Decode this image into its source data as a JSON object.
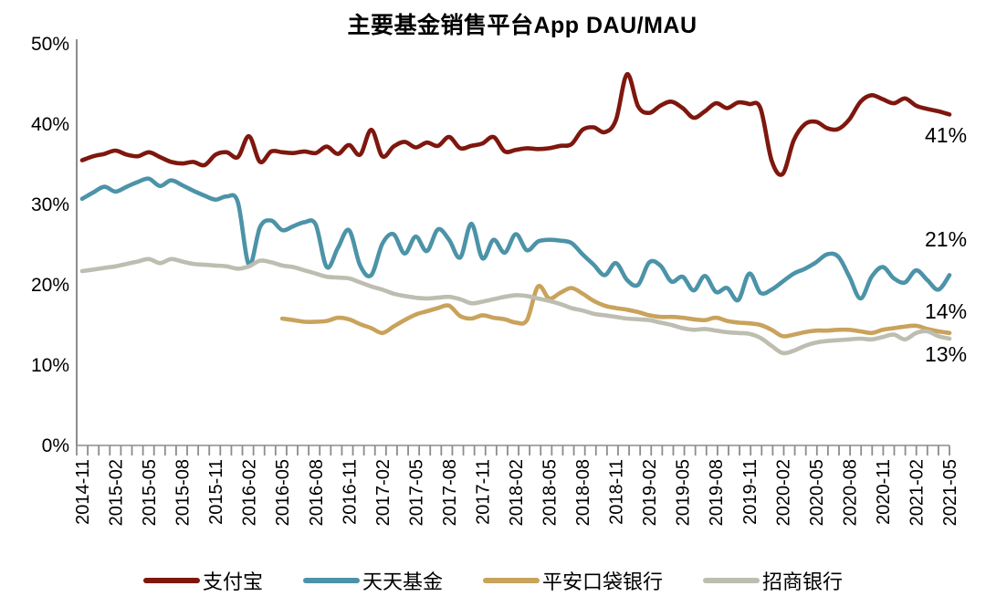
{
  "title": "主要基金销售平台App DAU/MAU",
  "colors": {
    "alipay": "#7E170E",
    "tiantian_fund": "#4C93A8",
    "pingan_pocket_bank": "#C9A25C",
    "cmb": "#BDBDB1",
    "axis": "#8C8C8C",
    "text": "#000000",
    "background": "#FFFFFF"
  },
  "chart_data": {
    "type": "line",
    "title": "主要基金销售平台App DAU/MAU",
    "grid": "off",
    "line_smoothing": true,
    "legend_position": "bottom",
    "ylim": [
      0,
      50
    ],
    "y_tick_labels": [
      "0%",
      "10%",
      "20%",
      "30%",
      "40%",
      "50%"
    ],
    "x_tick_labels": [
      "2014-11",
      "2015-02",
      "2015-05",
      "2015-08",
      "2015-11",
      "2016-02",
      "2016-05",
      "2016-08",
      "2016-11",
      "2017-02",
      "2017-05",
      "2017-08",
      "2017-11",
      "2018-02",
      "2018-05",
      "2018-08",
      "2018-11",
      "2019-02",
      "2019-05",
      "2019-08",
      "2019-11",
      "2020-02",
      "2020-05",
      "2020-08",
      "2020-11",
      "2021-02",
      "2021-05"
    ],
    "x_tick_every_n_months": 3,
    "categories": [
      "2014-11",
      "2014-12",
      "2015-01",
      "2015-02",
      "2015-03",
      "2015-04",
      "2015-05",
      "2015-06",
      "2015-07",
      "2015-08",
      "2015-09",
      "2015-10",
      "2015-11",
      "2015-12",
      "2016-01",
      "2016-02",
      "2016-03",
      "2016-04",
      "2016-05",
      "2016-06",
      "2016-07",
      "2016-08",
      "2016-09",
      "2016-10",
      "2016-11",
      "2016-12",
      "2017-01",
      "2017-02",
      "2017-03",
      "2017-04",
      "2017-05",
      "2017-06",
      "2017-07",
      "2017-08",
      "2017-09",
      "2017-10",
      "2017-11",
      "2017-12",
      "2018-01",
      "2018-02",
      "2018-03",
      "2018-04",
      "2018-05",
      "2018-06",
      "2018-07",
      "2018-08",
      "2018-09",
      "2018-10",
      "2018-11",
      "2018-12",
      "2019-01",
      "2019-02",
      "2019-03",
      "2019-04",
      "2019-05",
      "2019-06",
      "2019-07",
      "2019-08",
      "2019-09",
      "2019-10",
      "2019-11",
      "2019-12",
      "2020-01",
      "2020-02",
      "2020-03",
      "2020-04",
      "2020-05",
      "2020-06",
      "2020-07",
      "2020-08",
      "2020-09",
      "2020-10",
      "2020-11",
      "2020-12",
      "2021-01",
      "2021-02",
      "2021-03",
      "2021-04",
      "2021-05"
    ],
    "series": [
      {
        "key": "alipay",
        "name": "支付宝",
        "color": "#7E170E",
        "end_label": "41%",
        "values": [
          35.5,
          36.0,
          36.3,
          36.7,
          36.2,
          36.0,
          36.5,
          35.9,
          35.3,
          35.1,
          35.3,
          34.9,
          36.2,
          36.5,
          35.9,
          38.5,
          35.3,
          36.6,
          36.5,
          36.4,
          36.6,
          36.4,
          37.2,
          36.3,
          37.4,
          36.2,
          39.3,
          36.0,
          37.2,
          37.8,
          37.1,
          37.7,
          37.3,
          38.4,
          37.0,
          37.3,
          37.6,
          38.4,
          36.6,
          36.8,
          37.0,
          36.9,
          37.0,
          37.3,
          37.5,
          39.3,
          39.6,
          39.0,
          40.5,
          46.2,
          42.2,
          41.4,
          42.3,
          42.8,
          42.0,
          40.8,
          41.6,
          42.6,
          42.0,
          42.7,
          42.5,
          42.0,
          35.5,
          33.8,
          38.0,
          40.0,
          40.3,
          39.5,
          39.4,
          40.6,
          42.8,
          43.6,
          43.1,
          42.6,
          43.2,
          42.3,
          41.9,
          41.6,
          41.2
        ]
      },
      {
        "key": "tiantian-fund",
        "name": "天天基金",
        "color": "#4C93A8",
        "end_label": "21%",
        "values": [
          30.7,
          31.5,
          32.2,
          31.6,
          32.2,
          32.8,
          33.2,
          32.3,
          33.0,
          32.4,
          31.7,
          31.1,
          30.6,
          31.0,
          30.3,
          22.5,
          27.2,
          28.0,
          26.8,
          27.3,
          27.8,
          27.5,
          22.2,
          24.6,
          26.8,
          22.4,
          21.2,
          25.1,
          26.3,
          23.9,
          26.0,
          24.2,
          26.9,
          25.6,
          23.4,
          27.6,
          23.3,
          25.6,
          24.0,
          26.3,
          24.3,
          25.4,
          25.6,
          25.5,
          25.2,
          23.8,
          22.5,
          21.2,
          22.7,
          20.6,
          20.0,
          22.8,
          22.4,
          20.4,
          21.0,
          19.3,
          21.1,
          19.1,
          19.6,
          18.1,
          21.4,
          19.0,
          19.4,
          20.4,
          21.4,
          22.0,
          22.8,
          23.8,
          23.5,
          21.0,
          18.3,
          21.0,
          22.2,
          20.8,
          20.3,
          21.8,
          20.6,
          19.4,
          21.2
        ]
      },
      {
        "key": "pingan-pocket-bank",
        "name": "平安口袋银行",
        "color": "#C9A25C",
        "end_label": "14%",
        "values": [
          null,
          null,
          null,
          null,
          null,
          null,
          null,
          null,
          null,
          null,
          null,
          null,
          null,
          null,
          null,
          null,
          null,
          null,
          15.8,
          15.6,
          15.4,
          15.4,
          15.5,
          15.9,
          15.7,
          15.1,
          14.6,
          14.0,
          14.8,
          15.6,
          16.3,
          16.7,
          17.1,
          17.4,
          16.1,
          15.8,
          16.2,
          15.9,
          15.7,
          15.3,
          15.6,
          19.8,
          18.3,
          19.0,
          19.6,
          18.9,
          18.0,
          17.4,
          17.1,
          16.9,
          16.6,
          16.2,
          16.0,
          16.0,
          15.9,
          15.7,
          15.6,
          15.9,
          15.5,
          15.3,
          15.2,
          15.0,
          14.4,
          13.6,
          13.8,
          14.1,
          14.3,
          14.3,
          14.4,
          14.4,
          14.2,
          14.0,
          14.4,
          14.6,
          14.8,
          14.9,
          14.5,
          14.2,
          14.0
        ]
      },
      {
        "key": "cmb",
        "name": "招商银行",
        "color": "#BDBDB1",
        "end_label": "13%",
        "values": [
          21.7,
          21.9,
          22.1,
          22.3,
          22.6,
          22.9,
          23.2,
          22.7,
          23.2,
          22.9,
          22.6,
          22.5,
          22.4,
          22.3,
          22.0,
          22.3,
          23.0,
          22.8,
          22.4,
          22.2,
          21.8,
          21.4,
          21.0,
          20.9,
          20.8,
          20.3,
          19.8,
          19.4,
          18.9,
          18.6,
          18.4,
          18.3,
          18.4,
          18.5,
          18.2,
          17.7,
          17.9,
          18.2,
          18.5,
          18.7,
          18.6,
          18.3,
          18.0,
          17.6,
          17.1,
          16.8,
          16.4,
          16.2,
          16.0,
          15.8,
          15.7,
          15.6,
          15.3,
          15.0,
          14.6,
          14.4,
          14.5,
          14.3,
          14.1,
          14.0,
          13.9,
          13.4,
          12.4,
          11.5,
          11.8,
          12.4,
          12.8,
          13.0,
          13.1,
          13.2,
          13.3,
          13.2,
          13.5,
          13.8,
          13.2,
          14.0,
          14.2,
          13.6,
          13.3
        ]
      }
    ]
  }
}
